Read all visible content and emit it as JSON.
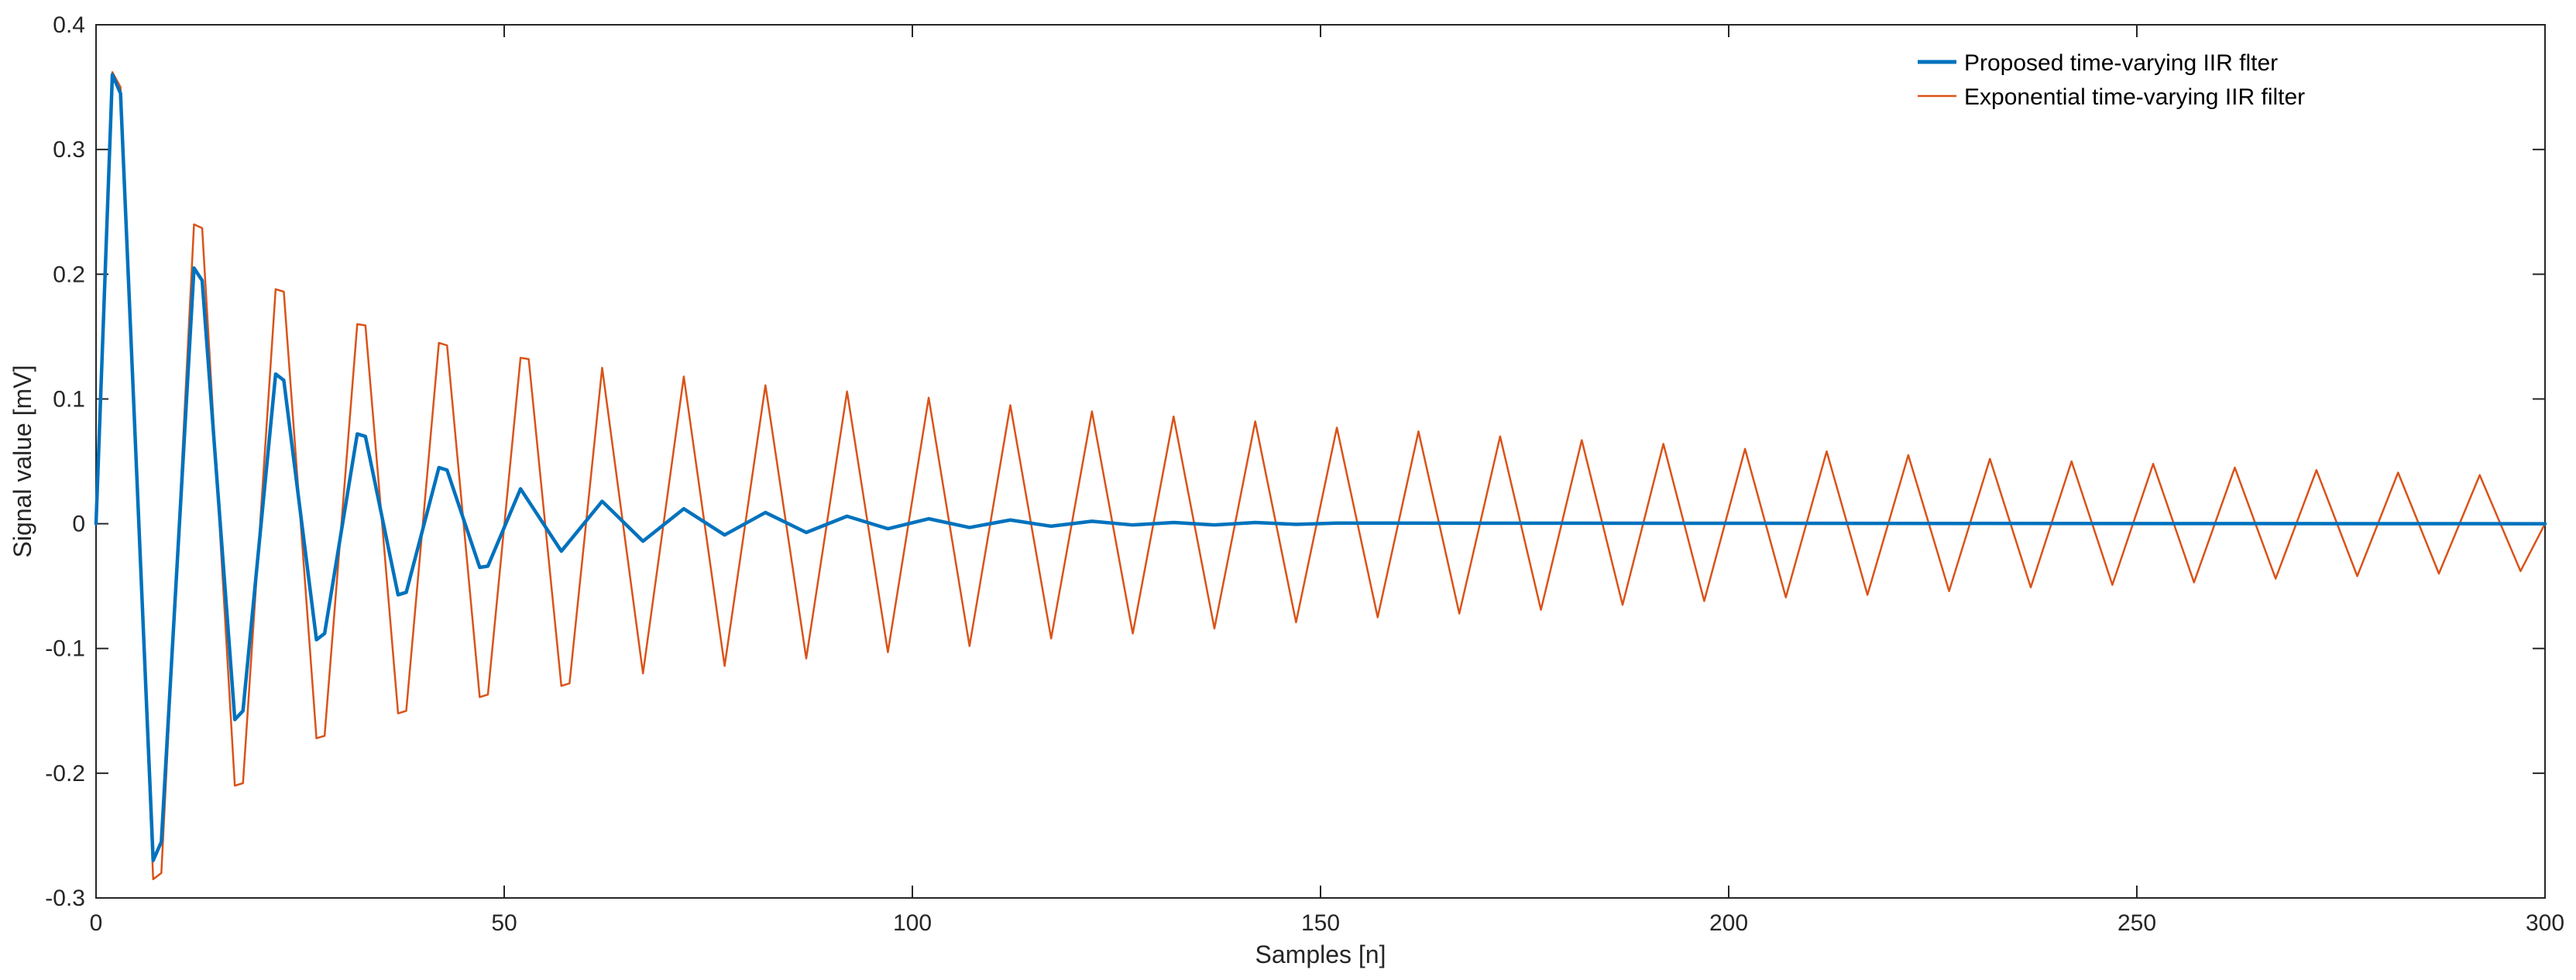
{
  "chart_data": {
    "type": "line",
    "title": "",
    "xlabel": "Samples [n]",
    "ylabel": "Signal value [mV]",
    "xlim": [
      0,
      300
    ],
    "ylim": [
      -0.3,
      0.4
    ],
    "xticks": [
      0,
      50,
      100,
      150,
      200,
      250,
      300
    ],
    "yticks": [
      -0.3,
      -0.2,
      -0.1,
      0,
      0.1,
      0.2,
      0.3,
      0.4
    ],
    "xtick_labels": [
      "0",
      "50",
      "100",
      "150",
      "200",
      "250",
      "300"
    ],
    "ytick_labels": [
      "-0.3",
      "-0.2",
      "-0.1",
      "0",
      "0.1",
      "0.2",
      "0.3",
      "0.4"
    ],
    "grid": false,
    "legend_position": "top-right",
    "series": [
      {
        "name": "Proposed time-varying IIR flter",
        "color": "#0072BD",
        "x": [
          0,
          2,
          3,
          7,
          8,
          12,
          13,
          17,
          18,
          22,
          23,
          27,
          28,
          32,
          33,
          37,
          38,
          42,
          43,
          47,
          48,
          52,
          57,
          62,
          67,
          72,
          77,
          82,
          87,
          92,
          97,
          102,
          107,
          112,
          117,
          122,
          127,
          132,
          137,
          142,
          147,
          152,
          300
        ],
        "values": [
          0,
          0.36,
          0.345,
          -0.27,
          -0.255,
          0.205,
          0.195,
          -0.157,
          -0.15,
          0.12,
          0.115,
          -0.093,
          -0.088,
          0.072,
          0.07,
          -0.057,
          -0.055,
          0.045,
          0.043,
          -0.035,
          -0.034,
          0.028,
          -0.022,
          0.018,
          -0.014,
          0.012,
          -0.009,
          0.009,
          -0.007,
          0.006,
          -0.004,
          0.004,
          -0.003,
          0.003,
          -0.002,
          0.002,
          -0.001,
          0.001,
          -0.001,
          0.001,
          -0.0005,
          0.0005,
          0
        ]
      },
      {
        "name": "Exponential time-varying IIR filter",
        "color": "#D95319",
        "x": [
          0,
          2,
          3,
          7,
          8,
          12,
          13,
          17,
          18,
          22,
          23,
          27,
          28,
          32,
          33,
          37,
          38,
          42,
          43,
          47,
          48,
          52,
          53,
          57,
          58,
          62,
          67,
          72,
          77,
          82,
          87,
          92,
          97,
          102,
          107,
          112,
          117,
          122,
          127,
          132,
          137,
          142,
          147,
          152,
          157,
          162,
          167,
          172,
          177,
          182,
          187,
          192,
          197,
          202,
          207,
          212,
          217,
          222,
          227,
          232,
          237,
          242,
          247,
          252,
          257,
          262,
          267,
          272,
          277,
          282,
          287,
          292,
          297,
          300
        ],
        "values": [
          0,
          0.362,
          0.35,
          -0.285,
          -0.28,
          0.24,
          0.237,
          -0.21,
          -0.208,
          0.188,
          0.186,
          -0.172,
          -0.17,
          0.16,
          0.159,
          -0.152,
          -0.15,
          0.145,
          0.143,
          -0.139,
          -0.137,
          0.133,
          0.132,
          -0.13,
          -0.128,
          0.125,
          -0.12,
          0.118,
          -0.114,
          0.111,
          -0.108,
          0.106,
          -0.103,
          0.101,
          -0.098,
          0.095,
          -0.092,
          0.09,
          -0.088,
          0.086,
          -0.084,
          0.082,
          -0.079,
          0.077,
          -0.075,
          0.074,
          -0.072,
          0.07,
          -0.069,
          0.067,
          -0.065,
          0.064,
          -0.062,
          0.06,
          -0.059,
          0.058,
          -0.057,
          0.055,
          -0.054,
          0.052,
          -0.051,
          0.05,
          -0.049,
          0.048,
          -0.047,
          0.045,
          -0.044,
          0.043,
          -0.042,
          0.041,
          -0.04,
          0.039,
          -0.038,
          0
        ]
      }
    ]
  }
}
